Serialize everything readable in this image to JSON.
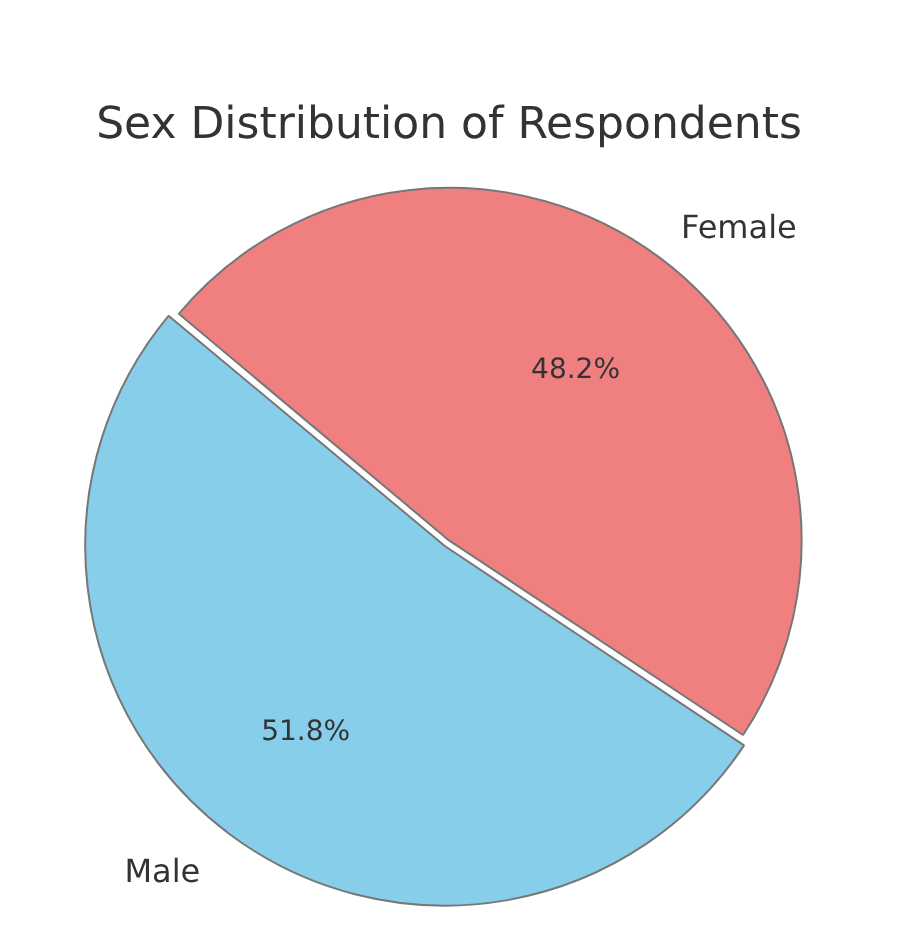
{
  "chart_data": {
    "type": "pie",
    "title": "Sex Distribution of Respondents",
    "categories": [
      "Male",
      "Female"
    ],
    "values": [
      51.8,
      48.2
    ],
    "colors": [
      "#87ceeb",
      "#f08080"
    ],
    "value_labels": [
      "51.8%",
      "48.2%"
    ],
    "legend": false
  }
}
